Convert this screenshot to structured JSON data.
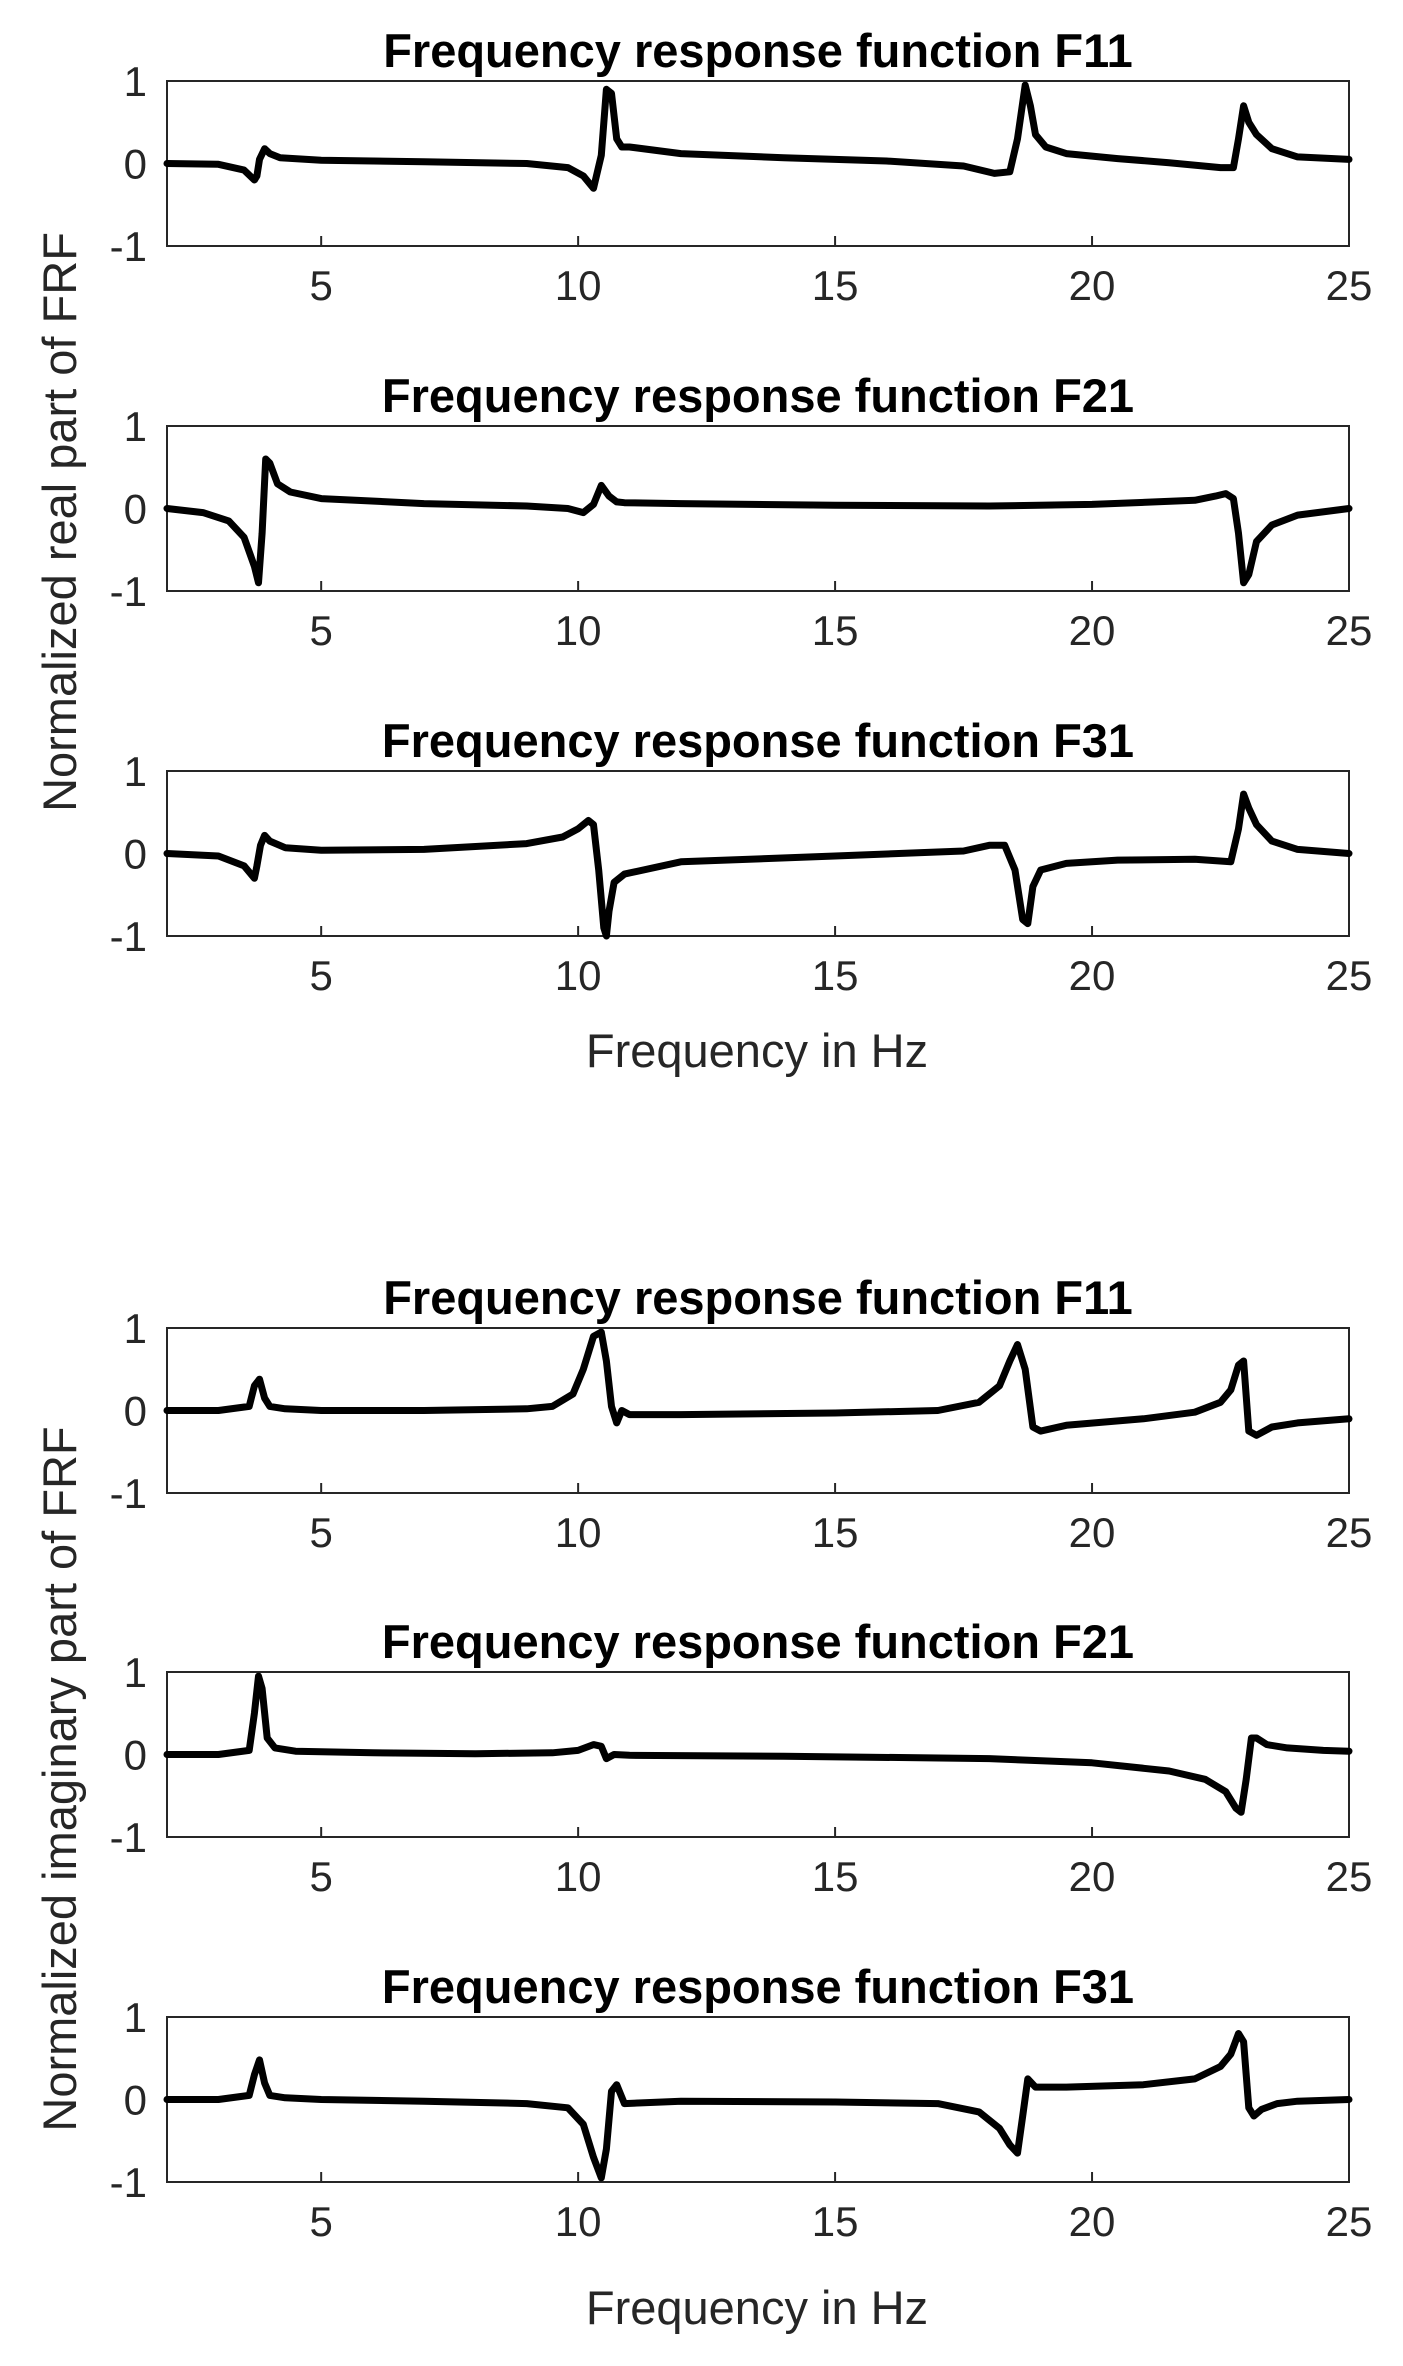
{
  "figure": {
    "groups": [
      {
        "ylabel": "Normalized real part of FRF",
        "xlabel": "Frequency in Hz"
      },
      {
        "ylabel": "Normalized imaginary part of FRF",
        "xlabel": "Frequency in Hz"
      }
    ]
  },
  "chart_data": [
    {
      "type": "line",
      "title": "Frequency response function F11",
      "xlim": [
        2,
        25
      ],
      "ylim": [
        -1,
        1
      ],
      "xticks": [
        "5",
        "10",
        "15",
        "20",
        "25"
      ],
      "yticks": [
        "1",
        "0",
        "-1"
      ],
      "grid": false,
      "series": [
        {
          "x": [
            2,
            3,
            3.5,
            3.7,
            3.75,
            3.8,
            3.9,
            4.0,
            4.2,
            5,
            7,
            9,
            9.8,
            10.1,
            10.3,
            10.45,
            10.55,
            10.65,
            10.75,
            10.85,
            11,
            12,
            14,
            16,
            17.5,
            18.1,
            18.4,
            18.55,
            18.7,
            18.8,
            18.9,
            19.1,
            19.5,
            20.5,
            21.5,
            22.5,
            22.75,
            22.85,
            22.95,
            23.05,
            23.2,
            23.5,
            24,
            25
          ],
          "y": [
            0,
            -0.01,
            -0.08,
            -0.2,
            -0.15,
            0.05,
            0.18,
            0.12,
            0.07,
            0.04,
            0.02,
            0,
            -0.05,
            -0.15,
            -0.3,
            0.1,
            0.9,
            0.85,
            0.3,
            0.2,
            0.2,
            0.12,
            0.07,
            0.03,
            -0.03,
            -0.12,
            -0.1,
            0.3,
            0.95,
            0.7,
            0.35,
            0.2,
            0.12,
            0.06,
            0.01,
            -0.05,
            -0.05,
            0.3,
            0.7,
            0.5,
            0.35,
            0.18,
            0.08,
            0.05
          ]
        }
      ]
    },
    {
      "type": "line",
      "title": "Frequency response function F21",
      "xlim": [
        2,
        25
      ],
      "ylim": [
        -1,
        1
      ],
      "xticks": [
        "5",
        "10",
        "15",
        "20",
        "25"
      ],
      "yticks": [
        "1",
        "0",
        "-1"
      ],
      "grid": false,
      "series": [
        {
          "x": [
            2,
            2.7,
            3.2,
            3.5,
            3.7,
            3.78,
            3.85,
            3.92,
            4.0,
            4.15,
            4.4,
            5,
            7,
            9,
            9.8,
            10.1,
            10.3,
            10.45,
            10.6,
            10.75,
            10.9,
            12,
            15,
            18,
            20,
            22,
            22.4,
            22.6,
            22.75,
            22.85,
            22.95,
            23.05,
            23.2,
            23.5,
            24,
            25
          ],
          "y": [
            0,
            -0.05,
            -0.15,
            -0.35,
            -0.7,
            -0.9,
            -0.3,
            0.6,
            0.55,
            0.3,
            0.2,
            0.12,
            0.06,
            0.03,
            0,
            -0.05,
            0.05,
            0.28,
            0.15,
            0.08,
            0.07,
            0.06,
            0.04,
            0.03,
            0.05,
            0.1,
            0.15,
            0.18,
            0.12,
            -0.3,
            -0.9,
            -0.8,
            -0.4,
            -0.2,
            -0.08,
            0
          ]
        }
      ]
    },
    {
      "type": "line",
      "title": "Frequency response function F31",
      "xlim": [
        2,
        25
      ],
      "ylim": [
        -1,
        1
      ],
      "xticks": [
        "5",
        "10",
        "15",
        "20",
        "25"
      ],
      "yticks": [
        "1",
        "0",
        "-1"
      ],
      "grid": false,
      "series": [
        {
          "x": [
            2,
            3,
            3.5,
            3.7,
            3.75,
            3.82,
            3.9,
            4.0,
            4.3,
            5,
            7,
            9,
            9.7,
            10.0,
            10.2,
            10.3,
            10.4,
            10.5,
            10.55,
            10.6,
            10.7,
            10.9,
            12,
            15,
            17.5,
            18.0,
            18.3,
            18.5,
            18.65,
            18.75,
            18.85,
            19.0,
            19.5,
            20.5,
            22,
            22.7,
            22.85,
            22.95,
            23.05,
            23.2,
            23.5,
            24,
            25
          ],
          "y": [
            0,
            -0.03,
            -0.15,
            -0.3,
            -0.15,
            0.1,
            0.22,
            0.15,
            0.07,
            0.04,
            0.05,
            0.12,
            0.2,
            0.3,
            0.4,
            0.35,
            -0.2,
            -0.9,
            -1.0,
            -0.7,
            -0.35,
            -0.25,
            -0.1,
            -0.03,
            0.03,
            0.1,
            0.1,
            -0.2,
            -0.8,
            -0.85,
            -0.4,
            -0.2,
            -0.12,
            -0.08,
            -0.07,
            -0.1,
            0.3,
            0.72,
            0.55,
            0.35,
            0.15,
            0.05,
            0
          ]
        }
      ]
    },
    {
      "type": "line",
      "title": "Frequency response function F11",
      "xlim": [
        2,
        25
      ],
      "ylim": [
        -1,
        1
      ],
      "xticks": [
        "5",
        "10",
        "15",
        "20",
        "25"
      ],
      "yticks": [
        "1",
        "0",
        "-1"
      ],
      "grid": false,
      "series": [
        {
          "x": [
            2,
            3,
            3.6,
            3.7,
            3.8,
            3.9,
            4.0,
            4.3,
            5,
            7,
            9,
            9.5,
            9.9,
            10.1,
            10.3,
            10.45,
            10.55,
            10.65,
            10.75,
            10.85,
            11,
            12,
            15,
            17,
            17.8,
            18.2,
            18.4,
            18.55,
            18.7,
            18.85,
            19,
            19.5,
            21,
            22,
            22.5,
            22.7,
            22.85,
            22.95,
            23.05,
            23.2,
            23.5,
            24,
            25
          ],
          "y": [
            0,
            0,
            0.05,
            0.3,
            0.38,
            0.15,
            0.05,
            0.02,
            0,
            0,
            0.02,
            0.05,
            0.2,
            0.5,
            0.9,
            0.95,
            0.6,
            0.05,
            -0.15,
            0,
            -0.05,
            -0.05,
            -0.03,
            0,
            0.1,
            0.3,
            0.6,
            0.8,
            0.5,
            -0.2,
            -0.25,
            -0.18,
            -0.1,
            -0.02,
            0.1,
            0.25,
            0.55,
            0.6,
            -0.25,
            -0.3,
            -0.2,
            -0.15,
            -0.1
          ]
        }
      ]
    },
    {
      "type": "line",
      "title": "Frequency response function F21",
      "xlim": [
        2,
        25
      ],
      "ylim": [
        -1,
        1
      ],
      "xticks": [
        "5",
        "10",
        "15",
        "20",
        "25"
      ],
      "yticks": [
        "1",
        "0",
        "-1"
      ],
      "grid": false,
      "series": [
        {
          "x": [
            2,
            3,
            3.6,
            3.7,
            3.78,
            3.85,
            3.95,
            4.1,
            4.5,
            6,
            8,
            9.5,
            10.0,
            10.3,
            10.45,
            10.55,
            10.7,
            11,
            14,
            18,
            20,
            21.5,
            22.2,
            22.6,
            22.8,
            22.9,
            23.0,
            23.1,
            23.2,
            23.4,
            23.8,
            24.5,
            25
          ],
          "y": [
            0,
            0,
            0.05,
            0.5,
            0.95,
            0.8,
            0.2,
            0.08,
            0.04,
            0.02,
            0.01,
            0.02,
            0.05,
            0.12,
            0.1,
            -0.05,
            0,
            -0.01,
            -0.02,
            -0.05,
            -0.1,
            -0.2,
            -0.3,
            -0.45,
            -0.65,
            -0.7,
            -0.3,
            0.2,
            0.2,
            0.12,
            0.08,
            0.05,
            0.04
          ]
        }
      ]
    },
    {
      "type": "line",
      "title": "Frequency response function F31",
      "xlim": [
        2,
        25
      ],
      "ylim": [
        -1,
        1
      ],
      "xticks": [
        "5",
        "10",
        "15",
        "20",
        "25"
      ],
      "yticks": [
        "1",
        "0",
        "-1"
      ],
      "grid": false,
      "series": [
        {
          "x": [
            2,
            3,
            3.6,
            3.7,
            3.8,
            3.9,
            4.0,
            4.3,
            5,
            7,
            9,
            9.8,
            10.1,
            10.3,
            10.45,
            10.55,
            10.65,
            10.75,
            10.9,
            12,
            15,
            17,
            17.8,
            18.2,
            18.4,
            18.55,
            18.65,
            18.75,
            18.9,
            19.5,
            21,
            22,
            22.5,
            22.7,
            22.85,
            22.95,
            23.05,
            23.15,
            23.3,
            23.6,
            24,
            25
          ],
          "y": [
            0,
            0,
            0.05,
            0.3,
            0.48,
            0.2,
            0.05,
            0.02,
            0,
            -0.02,
            -0.05,
            -0.1,
            -0.3,
            -0.7,
            -0.95,
            -0.6,
            0.1,
            0.18,
            -0.05,
            -0.02,
            -0.03,
            -0.05,
            -0.15,
            -0.35,
            -0.55,
            -0.65,
            -0.2,
            0.25,
            0.15,
            0.15,
            0.18,
            0.25,
            0.4,
            0.55,
            0.8,
            0.7,
            -0.1,
            -0.2,
            -0.12,
            -0.05,
            -0.02,
            0
          ]
        }
      ]
    }
  ]
}
